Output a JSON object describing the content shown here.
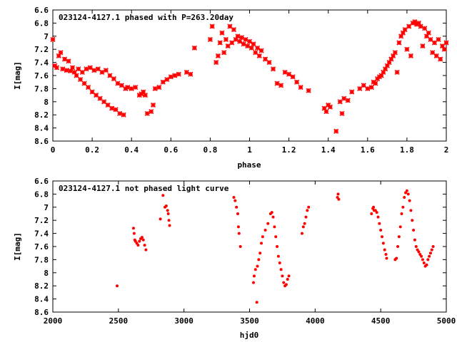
{
  "chart_data": [
    {
      "type": "scatter",
      "title": "023124-4127.1 phased with P=263.20day",
      "xlabel": "phase",
      "ylabel": "I[mag]",
      "xlim": [
        0,
        2
      ],
      "ylim": [
        8.6,
        6.6
      ],
      "y_inverted": true,
      "x_ticks": [
        "0",
        "0.2",
        "0.4",
        "0.6",
        "0.8",
        "1",
        "1.2",
        "1.4",
        "1.6",
        "1.8",
        "2"
      ],
      "y_ticks": [
        "6.6",
        "6.8",
        "7",
        "7.2",
        "7.4",
        "7.6",
        "7.8",
        "8",
        "8.2",
        "8.4",
        "8.6"
      ],
      "marker_color": "#ff0000",
      "marker": "cross",
      "points": [
        [
          0.0,
          7.05
        ],
        [
          0.01,
          7.45
        ],
        [
          0.02,
          7.48
        ],
        [
          0.03,
          7.3
        ],
        [
          0.04,
          7.25
        ],
        [
          0.05,
          7.5
        ],
        [
          0.06,
          7.35
        ],
        [
          0.07,
          7.52
        ],
        [
          0.08,
          7.38
        ],
        [
          0.09,
          7.53
        ],
        [
          0.1,
          7.48
        ],
        [
          0.11,
          7.55
        ],
        [
          0.12,
          7.6
        ],
        [
          0.13,
          7.5
        ],
        [
          0.14,
          7.66
        ],
        [
          0.15,
          7.55
        ],
        [
          0.16,
          7.72
        ],
        [
          0.17,
          7.5
        ],
        [
          0.18,
          7.78
        ],
        [
          0.19,
          7.48
        ],
        [
          0.2,
          7.85
        ],
        [
          0.21,
          7.52
        ],
        [
          0.22,
          7.9
        ],
        [
          0.23,
          7.5
        ],
        [
          0.24,
          7.95
        ],
        [
          0.25,
          7.55
        ],
        [
          0.26,
          8.0
        ],
        [
          0.27,
          7.52
        ],
        [
          0.28,
          8.05
        ],
        [
          0.29,
          7.6
        ],
        [
          0.3,
          8.1
        ],
        [
          0.31,
          7.65
        ],
        [
          0.32,
          8.12
        ],
        [
          0.33,
          7.72
        ],
        [
          0.34,
          8.18
        ],
        [
          0.35,
          7.75
        ],
        [
          0.36,
          8.2
        ],
        [
          0.37,
          7.8
        ],
        [
          0.38,
          7.78
        ],
        [
          0.4,
          7.8
        ],
        [
          0.42,
          7.78
        ],
        [
          0.44,
          7.9
        ],
        [
          0.45,
          7.88
        ],
        [
          0.46,
          7.85
        ],
        [
          0.47,
          7.9
        ],
        [
          0.48,
          8.18
        ],
        [
          0.5,
          8.15
        ],
        [
          0.51,
          8.05
        ],
        [
          0.52,
          7.8
        ],
        [
          0.54,
          7.78
        ],
        [
          0.56,
          7.7
        ],
        [
          0.58,
          7.66
        ],
        [
          0.6,
          7.62
        ],
        [
          0.62,
          7.6
        ],
        [
          0.64,
          7.58
        ],
        [
          0.68,
          7.55
        ],
        [
          0.7,
          7.58
        ],
        [
          0.72,
          7.18
        ],
        [
          0.8,
          7.05
        ],
        [
          0.81,
          6.85
        ],
        [
          0.83,
          7.4
        ],
        [
          0.84,
          7.3
        ],
        [
          0.85,
          7.1
        ],
        [
          0.86,
          6.95
        ],
        [
          0.87,
          7.25
        ],
        [
          0.88,
          7.05
        ],
        [
          0.89,
          7.15
        ],
        [
          0.9,
          6.85
        ],
        [
          0.91,
          7.1
        ],
        [
          0.92,
          6.9
        ],
        [
          0.93,
          7.05
        ],
        [
          0.94,
          7.0
        ],
        [
          0.95,
          7.08
        ],
        [
          0.96,
          7.02
        ],
        [
          0.97,
          7.12
        ],
        [
          0.98,
          7.05
        ],
        [
          0.99,
          7.15
        ],
        [
          1.0,
          7.08
        ],
        [
          1.01,
          7.18
        ],
        [
          1.02,
          7.12
        ],
        [
          1.03,
          7.25
        ],
        [
          1.04,
          7.18
        ],
        [
          1.05,
          7.3
        ],
        [
          1.06,
          7.22
        ],
        [
          1.08,
          7.35
        ],
        [
          1.1,
          7.4
        ],
        [
          1.12,
          7.5
        ],
        [
          1.14,
          7.72
        ],
        [
          1.16,
          7.75
        ],
        [
          1.18,
          7.55
        ],
        [
          1.2,
          7.58
        ],
        [
          1.22,
          7.62
        ],
        [
          1.24,
          7.7
        ],
        [
          1.26,
          7.78
        ],
        [
          1.3,
          7.83
        ],
        [
          1.38,
          8.1
        ],
        [
          1.39,
          8.15
        ],
        [
          1.4,
          8.05
        ],
        [
          1.41,
          8.08
        ],
        [
          1.44,
          8.45
        ],
        [
          1.46,
          8.0
        ],
        [
          1.47,
          8.18
        ],
        [
          1.48,
          7.95
        ],
        [
          1.5,
          7.98
        ],
        [
          1.52,
          7.85
        ],
        [
          1.56,
          7.8
        ],
        [
          1.58,
          7.75
        ],
        [
          1.6,
          7.8
        ],
        [
          1.62,
          7.78
        ],
        [
          1.63,
          7.7
        ],
        [
          1.64,
          7.72
        ],
        [
          1.65,
          7.65
        ],
        [
          1.66,
          7.62
        ],
        [
          1.67,
          7.6
        ],
        [
          1.68,
          7.55
        ],
        [
          1.69,
          7.5
        ],
        [
          1.7,
          7.45
        ],
        [
          1.71,
          7.4
        ],
        [
          1.72,
          7.35
        ],
        [
          1.73,
          7.3
        ],
        [
          1.74,
          7.25
        ],
        [
          1.75,
          7.55
        ],
        [
          1.76,
          7.1
        ],
        [
          1.77,
          7.0
        ],
        [
          1.78,
          6.95
        ],
        [
          1.79,
          6.9
        ],
        [
          1.8,
          7.2
        ],
        [
          1.81,
          6.85
        ],
        [
          1.82,
          7.3
        ],
        [
          1.83,
          6.8
        ],
        [
          1.84,
          6.78
        ],
        [
          1.85,
          6.82
        ],
        [
          1.86,
          6.8
        ],
        [
          1.87,
          6.85
        ],
        [
          1.88,
          7.15
        ],
        [
          1.89,
          6.88
        ],
        [
          1.9,
          7.0
        ],
        [
          1.91,
          6.95
        ],
        [
          1.92,
          7.05
        ],
        [
          1.93,
          7.25
        ],
        [
          1.94,
          7.1
        ],
        [
          1.95,
          7.3
        ],
        [
          1.96,
          7.05
        ],
        [
          1.97,
          7.35
        ],
        [
          1.98,
          7.15
        ],
        [
          1.99,
          7.2
        ],
        [
          2.0,
          7.1
        ]
      ]
    },
    {
      "type": "scatter",
      "title": "023124-4127.1 not phased light curve",
      "xlabel": "hjd0",
      "ylabel": "I[mag]",
      "xlim": [
        2000,
        5000
      ],
      "ylim": [
        8.6,
        6.6
      ],
      "y_inverted": true,
      "x_ticks": [
        "2000",
        "2500",
        "3000",
        "3500",
        "4000",
        "4500",
        "5000"
      ],
      "y_ticks": [
        "6.6",
        "6.8",
        "7",
        "7.2",
        "7.4",
        "7.6",
        "7.8",
        "8",
        "8.2",
        "8.4",
        "8.6"
      ],
      "marker_color": "#ff0000",
      "marker": "dot",
      "points": [
        [
          2490,
          8.2
        ],
        [
          2615,
          7.32
        ],
        [
          2620,
          7.4
        ],
        [
          2625,
          7.5
        ],
        [
          2630,
          7.52
        ],
        [
          2640,
          7.55
        ],
        [
          2650,
          7.58
        ],
        [
          2660,
          7.52
        ],
        [
          2670,
          7.48
        ],
        [
          2680,
          7.46
        ],
        [
          2690,
          7.5
        ],
        [
          2700,
          7.58
        ],
        [
          2710,
          7.65
        ],
        [
          2820,
          7.18
        ],
        [
          2840,
          6.82
        ],
        [
          2855,
          7.0
        ],
        [
          2865,
          6.98
        ],
        [
          2875,
          7.05
        ],
        [
          2880,
          7.1
        ],
        [
          2885,
          7.2
        ],
        [
          2890,
          7.28
        ],
        [
          3380,
          6.85
        ],
        [
          3390,
          6.9
        ],
        [
          3400,
          7.0
        ],
        [
          3410,
          7.1
        ],
        [
          3415,
          7.3
        ],
        [
          3420,
          7.4
        ],
        [
          3430,
          7.6
        ],
        [
          3530,
          8.15
        ],
        [
          3535,
          8.05
        ],
        [
          3545,
          7.95
        ],
        [
          3555,
          8.45
        ],
        [
          3560,
          7.9
        ],
        [
          3570,
          7.8
        ],
        [
          3580,
          7.7
        ],
        [
          3590,
          7.55
        ],
        [
          3600,
          7.45
        ],
        [
          3620,
          7.35
        ],
        [
          3640,
          7.25
        ],
        [
          3660,
          7.1
        ],
        [
          3670,
          7.08
        ],
        [
          3680,
          7.15
        ],
        [
          3690,
          7.3
        ],
        [
          3700,
          7.45
        ],
        [
          3710,
          7.6
        ],
        [
          3720,
          7.75
        ],
        [
          3730,
          7.85
        ],
        [
          3740,
          7.95
        ],
        [
          3750,
          8.05
        ],
        [
          3760,
          8.15
        ],
        [
          3770,
          8.2
        ],
        [
          3780,
          8.18
        ],
        [
          3790,
          8.1
        ],
        [
          3800,
          8.05
        ],
        [
          3900,
          7.4
        ],
        [
          3910,
          7.3
        ],
        [
          3920,
          7.25
        ],
        [
          3930,
          7.15
        ],
        [
          3940,
          7.05
        ],
        [
          3950,
          7.0
        ],
        [
          4170,
          6.85
        ],
        [
          4175,
          6.8
        ],
        [
          4180,
          6.88
        ],
        [
          4430,
          7.1
        ],
        [
          4440,
          7.02
        ],
        [
          4445,
          7.0
        ],
        [
          4450,
          7.05
        ],
        [
          4460,
          7.05
        ],
        [
          4470,
          7.08
        ],
        [
          4480,
          7.15
        ],
        [
          4490,
          7.25
        ],
        [
          4500,
          7.35
        ],
        [
          4510,
          7.45
        ],
        [
          4520,
          7.55
        ],
        [
          4530,
          7.65
        ],
        [
          4540,
          7.72
        ],
        [
          4545,
          7.78
        ],
        [
          4610,
          7.8
        ],
        [
          4620,
          7.78
        ],
        [
          4630,
          7.6
        ],
        [
          4640,
          7.45
        ],
        [
          4650,
          7.3
        ],
        [
          4660,
          7.1
        ],
        [
          4670,
          7.0
        ],
        [
          4680,
          6.85
        ],
        [
          4690,
          6.78
        ],
        [
          4700,
          6.75
        ],
        [
          4710,
          6.8
        ],
        [
          4720,
          6.9
        ],
        [
          4730,
          7.05
        ],
        [
          4740,
          7.2
        ],
        [
          4750,
          7.35
        ],
        [
          4760,
          7.5
        ],
        [
          4770,
          7.6
        ],
        [
          4780,
          7.65
        ],
        [
          4790,
          7.68
        ],
        [
          4800,
          7.72
        ],
        [
          4810,
          7.75
        ],
        [
          4820,
          7.8
        ],
        [
          4830,
          7.85
        ],
        [
          4840,
          7.9
        ],
        [
          4850,
          7.88
        ],
        [
          4860,
          7.8
        ],
        [
          4870,
          7.75
        ],
        [
          4880,
          7.7
        ],
        [
          4890,
          7.65
        ],
        [
          4900,
          7.6
        ]
      ]
    }
  ]
}
